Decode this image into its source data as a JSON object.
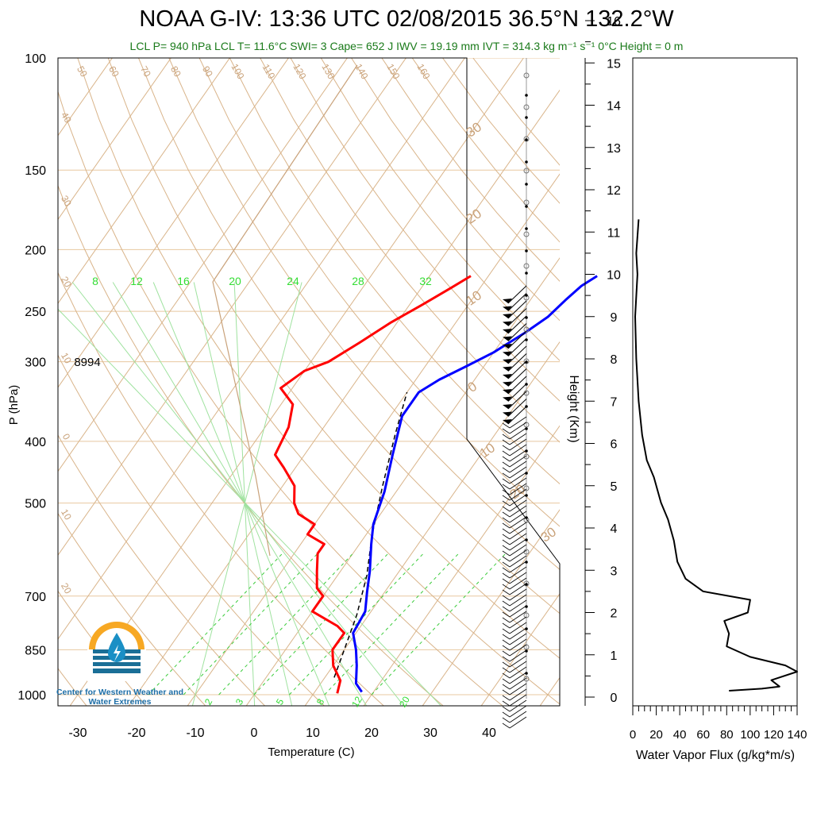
{
  "title": "NOAA G-IV: 13:36 UTC 02/08/2015  36.5°N 132.2°W",
  "subtitle": "LCL P= 940 hPa  LCL T= 11.6°C  SWI= 3  Cape= 652 J  IWV = 19.19 mm  IVT = 314.3 kg m⁻¹ s⁻¹  0°C Height = 0 m",
  "logo_text": "Center for Western Weather and Water Extremes",
  "chart_data": [
    {
      "type": "line",
      "name": "skew-t",
      "xlabel": "Temperature (C)",
      "ylabel": "P (hPa)",
      "x_ticks": [
        -30,
        -20,
        -10,
        0,
        10,
        20,
        30,
        40
      ],
      "y_ticks": [
        100,
        150,
        200,
        250,
        300,
        400,
        500,
        700,
        850,
        1000
      ],
      "annotation": "8994",
      "mixing_ratio_labels_top": [
        "8",
        "12",
        "16",
        "20",
        "24",
        "28",
        "32"
      ],
      "mixing_ratio_labels_bottom": [
        "2",
        "3",
        "5",
        "8",
        "12",
        "20"
      ],
      "theta_labels": [
        "50",
        "60",
        "70",
        "80",
        "90",
        "100",
        "110",
        "120",
        "130",
        "140",
        "150",
        "160"
      ],
      "isotherm_labels_left": [
        "40",
        "30",
        "20",
        "10",
        "0",
        "10",
        "20"
      ],
      "isotherm_labels_right": [
        "30",
        "20",
        "10",
        "0",
        "10",
        "20",
        "30"
      ],
      "series": [
        {
          "name": "Temperature",
          "color": "#0000ff",
          "points": [
            [
              18,
              990
            ],
            [
              16,
              960
            ],
            [
              14,
              900
            ],
            [
              12,
              850
            ],
            [
              9.5,
              800
            ],
            [
              9,
              740
            ],
            [
              7,
              690
            ],
            [
              5,
              640
            ],
            [
              2,
              580
            ],
            [
              0,
              540
            ],
            [
              -2,
              480
            ],
            [
              -5,
              420
            ],
            [
              -8,
              365
            ],
            [
              -8,
              335
            ],
            [
              -6,
              320
            ],
            [
              -3,
              305
            ],
            [
              0,
              290
            ],
            [
              3,
              270
            ],
            [
              5,
              255
            ],
            [
              6,
              240
            ],
            [
              7,
              228
            ],
            [
              8.5,
              220
            ]
          ]
        },
        {
          "name": "Dewpoint",
          "color": "#ff0000",
          "points": [
            [
              14,
              995
            ],
            [
              13,
              950
            ],
            [
              10,
              900
            ],
            [
              8,
              850
            ],
            [
              8,
              800
            ],
            [
              6,
              780
            ],
            [
              0,
              740
            ],
            [
              0,
              700
            ],
            [
              -2,
              680
            ],
            [
              -4,
              640
            ],
            [
              -6,
              600
            ],
            [
              -6,
              580
            ],
            [
              -10,
              560
            ],
            [
              -10,
              540
            ],
            [
              -14,
              520
            ],
            [
              -16,
              500
            ],
            [
              -18,
              470
            ],
            [
              -22,
              440
            ],
            [
              -25,
              420
            ],
            [
              -26,
              380
            ],
            [
              -28,
              350
            ],
            [
              -32,
              330
            ],
            [
              -30,
              310
            ],
            [
              -27,
              300
            ],
            [
              -24,
              280
            ],
            [
              -21,
              260
            ],
            [
              -18,
              245
            ],
            [
              -15,
              230
            ],
            [
              -13,
              220
            ]
          ]
        },
        {
          "name": "Parcel",
          "color": "#000000",
          "points": [
            [
              11.6,
              940
            ],
            [
              10,
              850
            ],
            [
              8,
              750
            ],
            [
              5,
              650
            ],
            [
              1,
              560
            ],
            [
              -3,
              470
            ],
            [
              -7,
              390
            ],
            [
              -10,
              335
            ]
          ]
        }
      ]
    },
    {
      "type": "line",
      "name": "water-vapor-flux",
      "xlabel": "Water Vapor Flux (g/kg*m/s)",
      "ylabel": "Height (Km)",
      "x_ticks": [
        0,
        20,
        40,
        60,
        80,
        100,
        120,
        140
      ],
      "y_ticks": [
        0,
        1,
        2,
        3,
        4,
        5,
        6,
        7,
        8,
        9,
        10,
        11,
        12,
        13,
        14,
        15,
        16
      ],
      "xlim": [
        0,
        140
      ],
      "ylim": [
        -0.2,
        16.3
      ],
      "series": [
        {
          "name": "flux",
          "color": "#000000",
          "points": [
            [
              82,
              0.15
            ],
            [
              110,
              0.2
            ],
            [
              125,
              0.25
            ],
            [
              118,
              0.4
            ],
            [
              140,
              0.6
            ],
            [
              130,
              0.75
            ],
            [
              100,
              0.95
            ],
            [
              80,
              1.2
            ],
            [
              82,
              1.5
            ],
            [
              78,
              1.8
            ],
            [
              98,
              2.0
            ],
            [
              100,
              2.3
            ],
            [
              60,
              2.5
            ],
            [
              45,
              2.8
            ],
            [
              38,
              3.2
            ],
            [
              35,
              3.7
            ],
            [
              30,
              4.2
            ],
            [
              24,
              4.6
            ],
            [
              18,
              5.2
            ],
            [
              12,
              5.6
            ],
            [
              8,
              6.2
            ],
            [
              5,
              7.0
            ],
            [
              3,
              8.0
            ],
            [
              2,
              9.0
            ],
            [
              4,
              10.0
            ],
            [
              3,
              10.5
            ],
            [
              5,
              11.3
            ]
          ]
        }
      ]
    }
  ]
}
